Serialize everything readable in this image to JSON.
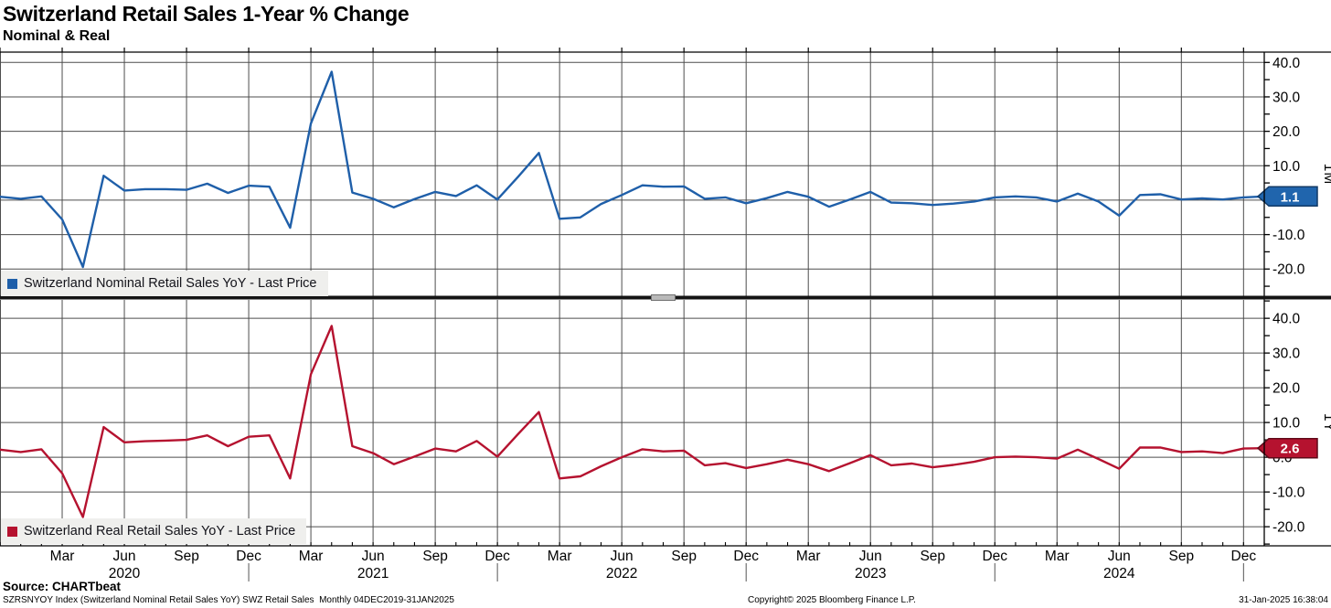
{
  "header": {
    "title": "Switzerland Retail Sales 1-Year % Change",
    "subtitle": "Nominal & Real"
  },
  "chart_data": [
    {
      "type": "line",
      "name": "nominal",
      "legend": "Switzerland Nominal Retail Sales YoY - Last Price",
      "color": "#1f5fa9",
      "tag_fill": "#2065ad",
      "tag_stroke": "#123a66",
      "axis_title": "1M",
      "last_price": "1.1",
      "x_start": "Dec 2019",
      "x_end": "Jan 2025",
      "frequency": "monthly",
      "ylabel": "%",
      "ylim": [
        -27.9,
        43.0
      ],
      "y_ticks": [
        40,
        30,
        20,
        10,
        0,
        -10,
        -20
      ],
      "grid": true,
      "legend_position": "bottom-left",
      "values": [
        1.0,
        0.4,
        1.1,
        -5.6,
        -19.4,
        7.1,
        2.8,
        3.2,
        3.2,
        3.0,
        4.8,
        2.1,
        4.2,
        3.9,
        -8.0,
        22.3,
        37.3,
        2.2,
        0.4,
        -2.1,
        0.3,
        2.4,
        1.2,
        4.3,
        0.2,
        6.8,
        13.7,
        -5.4,
        -5.0,
        -1.1,
        1.5,
        4.3,
        3.9,
        4.0,
        0.4,
        0.8,
        -0.9,
        0.6,
        2.4,
        1.0,
        -1.9,
        0.2,
        2.4,
        -0.7,
        -0.9,
        -1.4,
        -1.0,
        -0.4,
        0.8,
        1.1,
        0.8,
        -0.4,
        1.9,
        -0.4,
        -4.5,
        1.5,
        1.7,
        0.2,
        0.5,
        0.2,
        0.8,
        1.1
      ]
    },
    {
      "type": "line",
      "name": "real",
      "legend": "Switzerland Real Retail Sales YoY - Last Price",
      "color": "#b5122f",
      "tag_fill": "#b5122f",
      "tag_stroke": "#5f0918",
      "axis_title": "1Y",
      "last_price": "2.6",
      "x_start": "Dec 2019",
      "x_end": "Jan 2025",
      "frequency": "monthly",
      "ylabel": "%",
      "ylim": [
        -25.5,
        45.3
      ],
      "y_ticks": [
        40,
        30,
        20,
        10,
        0,
        -10,
        -20
      ],
      "grid": true,
      "legend_position": "bottom-left",
      "values": [
        2.2,
        1.5,
        2.3,
        -4.6,
        -17.2,
        8.7,
        4.3,
        4.6,
        4.8,
        5.0,
        6.3,
        3.2,
        5.9,
        6.3,
        -6.1,
        23.9,
        37.8,
        3.2,
        1.2,
        -2.0,
        0.2,
        2.5,
        1.7,
        4.7,
        0.2,
        6.7,
        13.0,
        -6.1,
        -5.5,
        -2.6,
        0.0,
        2.3,
        1.7,
        1.9,
        -2.3,
        -1.7,
        -3.1,
        -2.0,
        -0.7,
        -2.0,
        -4.0,
        -1.7,
        0.6,
        -2.3,
        -1.8,
        -2.9,
        -2.2,
        -1.3,
        0.0,
        0.2,
        0.0,
        -0.4,
        2.2,
        -0.5,
        -3.3,
        2.8,
        2.8,
        1.5,
        1.7,
        1.2,
        2.5,
        2.6
      ]
    }
  ],
  "x_axis": {
    "month_labels": [
      {
        "m": 3,
        "label": "Mar"
      },
      {
        "m": 6,
        "label": "Jun"
      },
      {
        "m": 9,
        "label": "Sep"
      },
      {
        "m": 12,
        "label": "Dec"
      },
      {
        "m": 15,
        "label": "Mar"
      },
      {
        "m": 18,
        "label": "Jun"
      },
      {
        "m": 21,
        "label": "Sep"
      },
      {
        "m": 24,
        "label": "Dec"
      },
      {
        "m": 27,
        "label": "Mar"
      },
      {
        "m": 30,
        "label": "Jun"
      },
      {
        "m": 33,
        "label": "Sep"
      },
      {
        "m": 36,
        "label": "Dec"
      },
      {
        "m": 39,
        "label": "Mar"
      },
      {
        "m": 42,
        "label": "Jun"
      },
      {
        "m": 45,
        "label": "Sep"
      },
      {
        "m": 48,
        "label": "Dec"
      },
      {
        "m": 51,
        "label": "Mar"
      },
      {
        "m": 54,
        "label": "Jun"
      },
      {
        "m": 57,
        "label": "Sep"
      },
      {
        "m": 60,
        "label": "Dec"
      }
    ],
    "year_labels": [
      {
        "m": 6,
        "label": "2020"
      },
      {
        "m": 18,
        "label": "2021"
      },
      {
        "m": 30,
        "label": "2022"
      },
      {
        "m": 42,
        "label": "2023"
      },
      {
        "m": 54,
        "label": "2024"
      }
    ],
    "year_separators_m": [
      12,
      24,
      36,
      48,
      60
    ]
  },
  "footer": {
    "source": "Source: CHARTbeat",
    "description": "SZRSNYOY Index (Switzerland Nominal Retail Sales YoY) SWZ Retail Sales  Monthly 04DEC2019-31JAN2025",
    "copyright": "Copyright© 2025 Bloomberg Finance L.P.",
    "timestamp": "31-Jan-2025 16:38:04"
  }
}
